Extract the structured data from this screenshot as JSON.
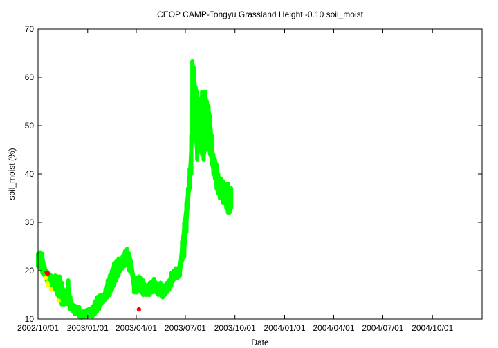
{
  "chart_data": {
    "type": "scatter",
    "title": "CEOP CAMP-Tongyu Grassland Height -0.10 soil_moist",
    "xlabel": "Date",
    "ylabel": "soil_moist (%)",
    "xlim": [
      "2002-10-01",
      "2005-01-01"
    ],
    "ylim": [
      10,
      70
    ],
    "grid": false,
    "legend": "none",
    "x_tick_labels": [
      "2002/10/01",
      "2003/01/01",
      "2003/04/01",
      "2003/07/01",
      "2003/10/01",
      "2004/01/01",
      "2004/04/01",
      "2004/07/01",
      "2004/10/01"
    ],
    "y_tick_labels": [
      "10",
      "20",
      "30",
      "40",
      "50",
      "60",
      "70"
    ],
    "colors": {
      "good": "#00ff00",
      "flagged": "#ffff00",
      "bad": "#ff0000",
      "axis": "#000000"
    },
    "series": [
      {
        "color": "#00ff00",
        "mode": "band",
        "points": [
          [
            "2002-10-01",
            21,
            23.5
          ],
          [
            "2002-10-05",
            20.5,
            23.8
          ],
          [
            "2002-10-09",
            19.5,
            23.5
          ],
          [
            "2002-10-13",
            19,
            21
          ],
          [
            "2002-10-17",
            18,
            20
          ],
          [
            "2002-10-21",
            17,
            19.5
          ],
          [
            "2002-10-25",
            17,
            19
          ],
          [
            "2002-10-29",
            16.5,
            18.5
          ],
          [
            "2002-11-02",
            16,
            19
          ],
          [
            "2002-11-06",
            15,
            18.8
          ],
          [
            "2002-11-10",
            14,
            18.8
          ],
          [
            "2002-11-14",
            13,
            17.5
          ],
          [
            "2002-11-18",
            13,
            16
          ],
          [
            "2002-11-22",
            13.5,
            15.5
          ],
          [
            "2002-11-26",
            13,
            18
          ],
          [
            "2002-11-30",
            12,
            14.5
          ],
          [
            "2002-12-04",
            11.5,
            13
          ],
          [
            "2002-12-08",
            11,
            12.8
          ],
          [
            "2002-12-12",
            11,
            12.5
          ],
          [
            "2002-12-16",
            10.5,
            12.5
          ],
          [
            "2002-12-20",
            10.3,
            11.5
          ],
          [
            "2003-01-10",
            10.5,
            12.5
          ],
          [
            "2003-01-14",
            11,
            13.5
          ],
          [
            "2003-01-18",
            11.5,
            14.5
          ],
          [
            "2003-01-22",
            12,
            14.8
          ],
          [
            "2003-01-26",
            13,
            15
          ],
          [
            "2003-01-30",
            13.5,
            15
          ],
          [
            "2003-02-03",
            14,
            16
          ],
          [
            "2003-02-07",
            14.5,
            18
          ],
          [
            "2003-02-11",
            15,
            19
          ],
          [
            "2003-02-15",
            16,
            20
          ],
          [
            "2003-02-19",
            17,
            21.5
          ],
          [
            "2003-02-23",
            18,
            22
          ],
          [
            "2003-02-27",
            19,
            22.5
          ],
          [
            "2003-03-03",
            20,
            22.5
          ],
          [
            "2003-03-07",
            20.5,
            23
          ],
          [
            "2003-03-11",
            21,
            24
          ],
          [
            "2003-03-15",
            21.5,
            24.5
          ],
          [
            "2003-03-19",
            20,
            23.5
          ],
          [
            "2003-03-23",
            19.5,
            22
          ],
          [
            "2003-03-28",
            15.5,
            18.5
          ],
          [
            "2003-04-02",
            15.5,
            18.5
          ],
          [
            "2003-04-06",
            16,
            18.8
          ],
          [
            "2003-04-10",
            15.5,
            18.5
          ],
          [
            "2003-04-14",
            15,
            18
          ],
          [
            "2003-04-18",
            15,
            17
          ],
          [
            "2003-04-22",
            15,
            17
          ],
          [
            "2003-04-26",
            15,
            17.5
          ],
          [
            "2003-04-30",
            15.5,
            17.8
          ],
          [
            "2003-05-04",
            16,
            18.3
          ],
          [
            "2003-05-08",
            15.5,
            17.5
          ],
          [
            "2003-05-12",
            15,
            17
          ],
          [
            "2003-05-16",
            15,
            17.5
          ],
          [
            "2003-05-20",
            14.5,
            16.5
          ],
          [
            "2003-05-24",
            15,
            17
          ],
          [
            "2003-05-28",
            15.5,
            17.5
          ],
          [
            "2003-06-01",
            16,
            18
          ],
          [
            "2003-06-05",
            17,
            19.5
          ],
          [
            "2003-06-09",
            18,
            20
          ],
          [
            "2003-06-13",
            18.5,
            20.5
          ],
          [
            "2003-06-17",
            18.5,
            20.5
          ],
          [
            "2003-06-21",
            19,
            21.5
          ],
          [
            "2003-06-25",
            22,
            26
          ],
          [
            "2003-06-29",
            23,
            30
          ],
          [
            "2003-07-03",
            28,
            34
          ],
          [
            "2003-07-06",
            33,
            37
          ],
          [
            "2003-07-09",
            37,
            41
          ],
          [
            "2003-07-12",
            40,
            48
          ],
          [
            "2003-07-14",
            48,
            63.3
          ],
          [
            "2003-07-17",
            50,
            62
          ],
          [
            "2003-07-20",
            47,
            58
          ],
          [
            "2003-07-23",
            43,
            57
          ],
          [
            "2003-07-26",
            45,
            55
          ],
          [
            "2003-07-29",
            45,
            55
          ],
          [
            "2003-08-01",
            44,
            57
          ],
          [
            "2003-08-04",
            43,
            55
          ],
          [
            "2003-08-07",
            45,
            57
          ],
          [
            "2003-08-10",
            47,
            55
          ],
          [
            "2003-08-13",
            45,
            54
          ],
          [
            "2003-08-16",
            44,
            52
          ],
          [
            "2003-08-19",
            42,
            48
          ],
          [
            "2003-08-22",
            40,
            44
          ],
          [
            "2003-08-25",
            39,
            43
          ],
          [
            "2003-08-28",
            37,
            42
          ],
          [
            "2003-08-31",
            36,
            40
          ],
          [
            "2003-09-03",
            35,
            39
          ],
          [
            "2003-09-06",
            35,
            39
          ],
          [
            "2003-09-09",
            34,
            38.5
          ],
          [
            "2003-09-12",
            34,
            38
          ],
          [
            "2003-09-15",
            33,
            38
          ],
          [
            "2003-09-18",
            32,
            38
          ],
          [
            "2003-09-21",
            32,
            37
          ],
          [
            "2003-09-24",
            33,
            37
          ]
        ]
      },
      {
        "color": "#ffff00",
        "mode": "points",
        "points": [
          [
            "2002-10-15",
            18.5
          ],
          [
            "2002-10-18",
            17.5
          ],
          [
            "2002-10-20",
            17
          ],
          [
            "2002-10-25",
            16.2
          ],
          [
            "2002-11-08",
            13.8
          ]
        ]
      },
      {
        "color": "#ff0000",
        "mode": "points",
        "points": [
          [
            "2002-10-17",
            19.6
          ],
          [
            "2002-10-19",
            19.4
          ],
          [
            "2003-04-06",
            12
          ]
        ]
      }
    ]
  }
}
